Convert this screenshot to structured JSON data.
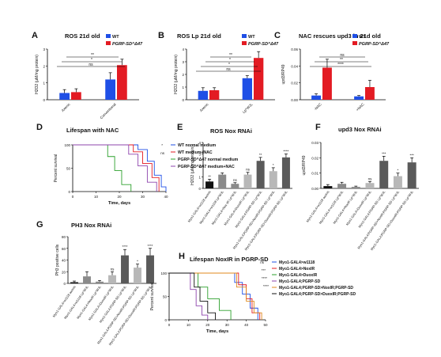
{
  "colors": {
    "wt": "#1f4fe6",
    "mut": "#e31b23",
    "dark": "#111111",
    "gray1": "#8a8a8a",
    "gray2": "#b8b8b8",
    "gray3": "#5a5a5a"
  },
  "chart_data": [
    {
      "panel": "A",
      "type": "bar",
      "title": "ROS 21d old",
      "ylabel": "H2O2 (μM/mg protein)",
      "ylim": [
        0,
        3
      ],
      "yticks": [
        0,
        1,
        2,
        3
      ],
      "categories": [
        "Axenic",
        "Conventional"
      ],
      "legend": [
        "WT",
        "PGRP-SD^Δ47"
      ],
      "series": [
        {
          "name": "WT",
          "values": [
            0.4,
            1.2
          ],
          "errors": [
            0.2,
            0.4
          ]
        },
        {
          "name": "PGRP-SD^Δ47",
          "values": [
            0.45,
            2.05
          ],
          "errors": [
            0.2,
            0.35
          ]
        }
      ],
      "sig": [
        "ns",
        "*",
        "**"
      ]
    },
    {
      "panel": "B",
      "type": "bar",
      "title": "ROS Lp 21d old",
      "ylabel": "H2O2 (μM/mg protein)",
      "ylim": [
        0,
        4
      ],
      "yticks": [
        0,
        1,
        2,
        3,
        4
      ],
      "categories": [
        "Axenic",
        "Lp^WJL"
      ],
      "legend": [
        "WT",
        "PGRP-SD^Δ47"
      ],
      "series": [
        {
          "name": "WT",
          "values": [
            0.7,
            1.7
          ],
          "errors": [
            0.25,
            0.2
          ]
        },
        {
          "name": "PGRP-SD^Δ47",
          "values": [
            0.75,
            3.3
          ],
          "errors": [
            0.2,
            0.5
          ]
        }
      ],
      "sig": [
        "ns",
        "*",
        "*",
        "**"
      ]
    },
    {
      "panel": "C",
      "type": "bar",
      "title": "NAC rescues upd3 in 21d old",
      "ylabel": "upd3/RP49",
      "ylim": [
        0,
        0.06
      ],
      "yticks": [
        "0.00",
        "0.02",
        "0.04",
        "0.06"
      ],
      "categories": [
        "-NAC",
        "+NAC"
      ],
      "legend": [
        "WT",
        "PGRP-SD^Δ47"
      ],
      "series": [
        {
          "name": "WT",
          "values": [
            0.005,
            0.004
          ],
          "errors": [
            0.002,
            0.001
          ]
        },
        {
          "name": "PGRP-SD^Δ47",
          "values": [
            0.038,
            0.015
          ],
          "errors": [
            0.01,
            0.008
          ]
        }
      ],
      "sig": [
        "****",
        "**",
        "ns"
      ]
    },
    {
      "panel": "D",
      "type": "line",
      "title": "Lifespan with NAC",
      "xlabel": "Time, days",
      "ylabel": "Percent survival",
      "xlim": [
        0,
        40
      ],
      "xticks": [
        0,
        10,
        20,
        30,
        40
      ],
      "ylim": [
        0,
        100
      ],
      "yticks": [
        "0",
        "50",
        "100"
      ],
      "series": [
        {
          "name": "WT normal medium",
          "x": [
            0,
            22,
            28,
            32,
            35,
            38,
            40
          ],
          "y": [
            100,
            100,
            90,
            65,
            35,
            10,
            0
          ]
        },
        {
          "name": "WT medium+NAC",
          "x": [
            0,
            20,
            26,
            30,
            34,
            37
          ],
          "y": [
            100,
            100,
            85,
            60,
            30,
            0
          ]
        },
        {
          "name": "PGRP-SD^Δ47 normal medium",
          "x": [
            0,
            12,
            15,
            18,
            21,
            25
          ],
          "y": [
            100,
            100,
            75,
            45,
            15,
            0
          ]
        },
        {
          "name": "PGRP-SD^Δ47 medium+NAC",
          "x": [
            0,
            18,
            24,
            28,
            32,
            36
          ],
          "y": [
            100,
            100,
            80,
            55,
            20,
            0
          ]
        }
      ],
      "sig": [
        "*",
        "ns"
      ]
    },
    {
      "panel": "E",
      "type": "bar",
      "title": "ROS Nox RNAi",
      "ylabel": "H2O2 (μM/mg protein)",
      "ylim": [
        0,
        4
      ],
      "yticks": [
        0,
        1,
        2,
        3,
        4
      ],
      "categories": [
        "Myo1-GAL4>w1118 axenic",
        "Myo1-GAL4>w1118 Lp^WJL",
        "Myo1-GAL4>Nox-IR Lp^WJL",
        "Myo1-GAL4>DuoxIR Lp^WJL",
        "Myo1-GAL4;PGRP-SD Lp^WJL",
        "Myo1-GAL4;PGRP-SD>NoxIR;PGRP-SD Lp^WJL",
        "Myo1-GAL4;PGRP-SD>DuoxIR;PGRP-SD Lp^WJL"
      ],
      "values": [
        0.6,
        1.2,
        0.4,
        1.2,
        2.4,
        1.5,
        2.7
      ],
      "errors": [
        0.2,
        0.15,
        0.1,
        0.2,
        0.3,
        0.3,
        0.3
      ],
      "sig": [
        "**",
        "",
        "ns",
        "ns",
        "**",
        "*",
        "****"
      ]
    },
    {
      "panel": "F",
      "type": "bar",
      "title": "upd3 Nox RNAi",
      "ylabel": "upd3/RP49",
      "ylim": [
        0,
        0.03
      ],
      "yticks": [
        "0.00",
        "0.01",
        "0.02",
        "0.03"
      ],
      "categories": [
        "Myo1-GAL4>w1118 axenic",
        "Myo1-GAL4>w1118 Lp^WJL",
        "Myo1-GAL4>NoxIR Lp^WJL",
        "Myo1-GAL4>DuoxIR Lp^WJL",
        "Myo1-GAL4;PGRP-SD Lp^WJL",
        "Myo1-GAL4;PGRP-SD>NoxIR;PGRP-SD Lp^WJL",
        "Myo1-GAL4;PGRP-SD>DuoxIR;PGRP-SD Lp^WJL"
      ],
      "values": [
        0.0015,
        0.003,
        0.001,
        0.0035,
        0.018,
        0.008,
        0.017
      ],
      "errors": [
        0.001,
        0.001,
        0.0005,
        0.001,
        0.003,
        0.002,
        0.003
      ],
      "sig": [
        "",
        "",
        "",
        "ns",
        "***",
        "*",
        "***"
      ]
    },
    {
      "panel": "G",
      "type": "bar",
      "title": "PH3 Nox RNAi",
      "ylabel": "PH3 positive cells",
      "ylim": [
        0,
        80
      ],
      "yticks": [
        0,
        20,
        40,
        60,
        80
      ],
      "categories": [
        "Myo1-GAL4>w1118 axenic",
        "Myo1-GAL4>w1118 Lp^WJL",
        "Myo1-GAL4>NoxIR Lp^WJL",
        "Myo1-GAL4>DuoxIR Lp^WJL",
        "Myo1-GAL4;PGRP-SD Lp^WJL",
        "Myo1-GAL4;PGRP-SD>NoxIR;PGRP-SD Lp^WJL",
        "Myo1-GAL4;PGRP-SD>DuoxIR;PGRP-SD Lp^WJL"
      ],
      "values": [
        2,
        12,
        3,
        14,
        48,
        27,
        48
      ],
      "errors": [
        2,
        8,
        2,
        6,
        10,
        6,
        12
      ],
      "sig": [
        "",
        "",
        "",
        "ns",
        "****",
        "*",
        "****"
      ]
    },
    {
      "panel": "H",
      "type": "line",
      "title": "Lifespan NoxIR in PGRP-SD",
      "xlabel": "Time, days",
      "ylabel": "Percent survival",
      "xlim": [
        0,
        50
      ],
      "xticks": [
        0,
        10,
        20,
        30,
        40,
        50
      ],
      "ylim": [
        0,
        100
      ],
      "yticks": [
        "0",
        "50",
        "100"
      ],
      "series": [
        {
          "name": "Myo1-GAL4>w1118",
          "x": [
            0,
            30,
            34,
            38,
            42,
            46
          ],
          "y": [
            100,
            100,
            80,
            55,
            25,
            0
          ]
        },
        {
          "name": "Myo1-GAL4>NoxIR",
          "x": [
            0,
            32,
            36,
            40,
            43,
            47
          ],
          "y": [
            100,
            100,
            75,
            45,
            15,
            0
          ]
        },
        {
          "name": "Myo1-GAL4>DuoxIR",
          "x": [
            0,
            12,
            15,
            20,
            26,
            32
          ],
          "y": [
            100,
            100,
            70,
            45,
            20,
            0
          ]
        },
        {
          "name": "Myo1-GAL4;PGRP-SD",
          "x": [
            0,
            8,
            11,
            14,
            17,
            20
          ],
          "y": [
            100,
            100,
            65,
            30,
            10,
            0
          ]
        },
        {
          "name": "Myo1-GAL4;PGRP-SD>NoxIR;PGRP-SD",
          "x": [
            0,
            30,
            35,
            40,
            44,
            48
          ],
          "y": [
            100,
            100,
            70,
            40,
            15,
            0
          ]
        },
        {
          "name": "Myo1-GAL4;PGRP-SD>DuoxIR;PGRP-SD",
          "x": [
            0,
            10,
            13,
            16,
            20,
            24
          ],
          "y": [
            100,
            100,
            70,
            40,
            15,
            0
          ]
        }
      ],
      "sig": [
        "ns",
        "***",
        "****",
        "****"
      ]
    }
  ]
}
